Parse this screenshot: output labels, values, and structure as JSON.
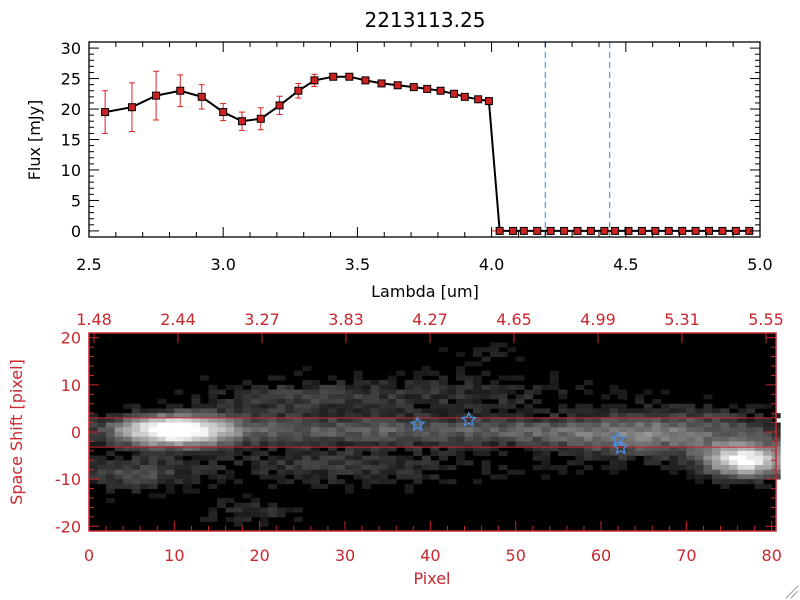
{
  "chart_data": [
    {
      "type": "line",
      "title": "2213113.25",
      "xlabel": "Lambda [um]",
      "ylabel": "Flux [mJy]",
      "xlim": [
        2.5,
        5.0
      ],
      "ylim": [
        -1,
        31
      ],
      "x_ticks": [
        "2.5",
        "3.0",
        "3.5",
        "4.0",
        "4.5",
        "5.0"
      ],
      "y_ticks": [
        "0",
        "5",
        "10",
        "15",
        "20",
        "25",
        "30"
      ],
      "series": [
        {
          "name": "flux",
          "line_color": "#000000",
          "marker_color": "#cc2222",
          "error_color": "#dd2020",
          "x": [
            2.56,
            2.66,
            2.75,
            2.84,
            2.92,
            3.0,
            3.07,
            3.14,
            3.21,
            3.28,
            3.34,
            3.41,
            3.47,
            3.53,
            3.59,
            3.65,
            3.71,
            3.76,
            3.81,
            3.86,
            3.9,
            3.95,
            3.99,
            4.03,
            4.08,
            4.12,
            4.17,
            4.22,
            4.27,
            4.32,
            4.37,
            4.42,
            4.46,
            4.51,
            4.56,
            4.61,
            4.66,
            4.71,
            4.76,
            4.81,
            4.86,
            4.91,
            4.96
          ],
          "y": [
            19.5,
            20.3,
            22.2,
            23.0,
            22.0,
            19.5,
            18.0,
            18.4,
            20.6,
            23.0,
            24.7,
            25.3,
            25.3,
            24.7,
            24.2,
            23.9,
            23.6,
            23.3,
            23.0,
            22.5,
            22.0,
            21.6,
            21.3,
            0,
            0,
            0,
            0,
            0,
            0,
            0,
            0,
            0,
            0,
            0,
            0,
            0,
            0,
            0,
            0,
            0,
            0,
            0,
            0
          ],
          "err": [
            3.5,
            4.0,
            4.0,
            2.6,
            2.0,
            1.4,
            1.5,
            1.8,
            1.5,
            1.2,
            1.0,
            0.5,
            0.4,
            0.4,
            0.3,
            0.3,
            0.3,
            0.3,
            0.3,
            0.3,
            0.3,
            0.3,
            0.3,
            0,
            0,
            0,
            0,
            0,
            0,
            0,
            0,
            0,
            0,
            0,
            0,
            0,
            0,
            0,
            0,
            0,
            0,
            0,
            0
          ]
        }
      ],
      "vlines": [
        {
          "x": 4.2,
          "color": "#3a86c8",
          "style": "dashed"
        },
        {
          "x": 4.44,
          "color": "#3a86c8",
          "style": "dashed"
        }
      ],
      "hline": {
        "y": 0,
        "color": "#cc2222",
        "style": "dashed"
      }
    },
    {
      "type": "heatmap",
      "xlabel": "Pixel",
      "ylabel": "Space Shift [pixel]",
      "xlim": [
        0,
        80.5
      ],
      "ylim": [
        -21,
        21
      ],
      "x_ticks": [
        "0",
        "10",
        "20",
        "30",
        "40",
        "50",
        "60",
        "70",
        "80"
      ],
      "y_ticks": [
        "-20",
        "-10",
        "0",
        "10",
        "20"
      ],
      "top_ticks": [
        "1.48",
        "2.44",
        "3.27",
        "3.83",
        "4.27",
        "4.65",
        "4.99",
        "5.31",
        "5.55"
      ],
      "axis_color": "#c8282e",
      "aperture_lines": [
        3.0,
        -3.2
      ],
      "markers": [
        {
          "x": 38.5,
          "y": 1.6
        },
        {
          "x": 44.5,
          "y": 2.6
        },
        {
          "x": 62.0,
          "y": -1.5
        },
        {
          "x": 62.3,
          "y": -3.3
        }
      ],
      "marker_color": "#4a90e2"
    }
  ]
}
